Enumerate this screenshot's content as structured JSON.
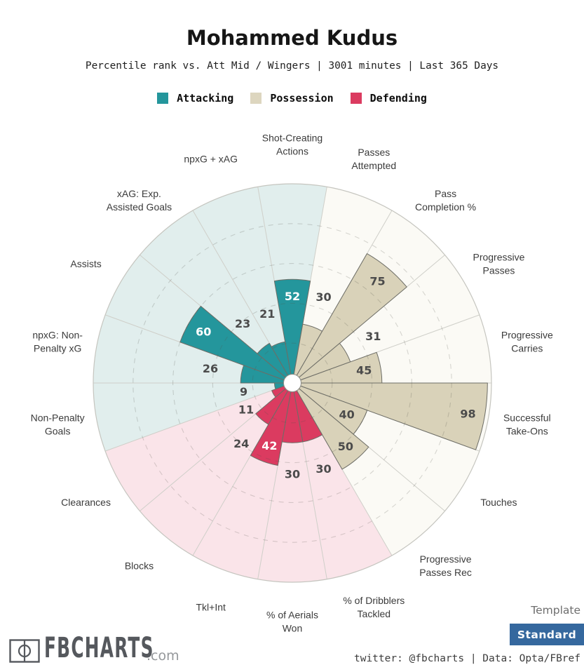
{
  "header": {
    "title": "Mohammed Kudus",
    "subtitle": "Percentile rank vs. Att Mid / Wingers | 3001 minutes | Last 365 Days"
  },
  "legend": [
    {
      "label": "Attacking",
      "color": "#24969c"
    },
    {
      "label": "Possession",
      "color": "#ddd6bf"
    },
    {
      "label": "Defending",
      "color": "#db3b60"
    }
  ],
  "chart_data": {
    "type": "pizza",
    "unit": "percentile",
    "rlim": [
      0,
      100
    ],
    "gridlines": [
      20,
      40,
      60,
      80
    ],
    "grid_style": "dashed",
    "start": "Shot-Creating Actions at top, clockwise",
    "groups": {
      "attacking": {
        "fill": "#24969c",
        "bg": "#e1eeed"
      },
      "possession": {
        "fill": "#d9d2b9",
        "bg": "#fbfaf5"
      },
      "defending": {
        "fill": "#db3b60",
        "bg": "#fae4e9"
      }
    },
    "slices": [
      {
        "label": [
          "Shot-Creating",
          "Actions"
        ],
        "value": 52,
        "group": "attacking"
      },
      {
        "label": [
          "Passes",
          "Attempted"
        ],
        "value": 30,
        "group": "possession"
      },
      {
        "label": [
          "Pass",
          "Completion %"
        ],
        "value": 75,
        "group": "possession"
      },
      {
        "label": [
          "Progressive",
          "Passes"
        ],
        "value": 31,
        "group": "possession"
      },
      {
        "label": [
          "Progressive",
          "Carries"
        ],
        "value": 45,
        "group": "possession"
      },
      {
        "label": [
          "Successful",
          "Take-Ons"
        ],
        "value": 98,
        "group": "possession"
      },
      {
        "label": [
          "Touches"
        ],
        "value": 40,
        "group": "possession"
      },
      {
        "label": [
          "Progressive",
          "Passes Rec"
        ],
        "value": 50,
        "group": "possession"
      },
      {
        "label": [
          "% of Dribblers",
          "Tackled"
        ],
        "value": 30,
        "group": "defending"
      },
      {
        "label": [
          "% of Aerials",
          "Won"
        ],
        "value": 30,
        "group": "defending"
      },
      {
        "label": [
          "Tkl+Int"
        ],
        "value": 42,
        "group": "defending"
      },
      {
        "label": [
          "Blocks"
        ],
        "value": 24,
        "group": "defending"
      },
      {
        "label": [
          "Clearances"
        ],
        "value": 11,
        "group": "defending"
      },
      {
        "label": [
          "Non-Penalty",
          "Goals"
        ],
        "value": 9,
        "group": "attacking"
      },
      {
        "label": [
          "npxG: Non-",
          "Penalty xG"
        ],
        "value": 26,
        "group": "attacking"
      },
      {
        "label": [
          "Assists"
        ],
        "value": 60,
        "group": "attacking"
      },
      {
        "label": [
          "xAG: Exp.",
          "Assisted Goals"
        ],
        "value": 23,
        "group": "attacking"
      },
      {
        "label": [
          "npxG + xAG"
        ],
        "value": 21,
        "group": "attacking"
      }
    ]
  },
  "footer": {
    "logo_text": "FBCHARTS",
    "logo_suffix": ".com",
    "template_label": "Template",
    "template_value": "Standard",
    "button_color": "#35689e",
    "credit": "twitter: @fbcharts | Data: Opta/FBref"
  }
}
